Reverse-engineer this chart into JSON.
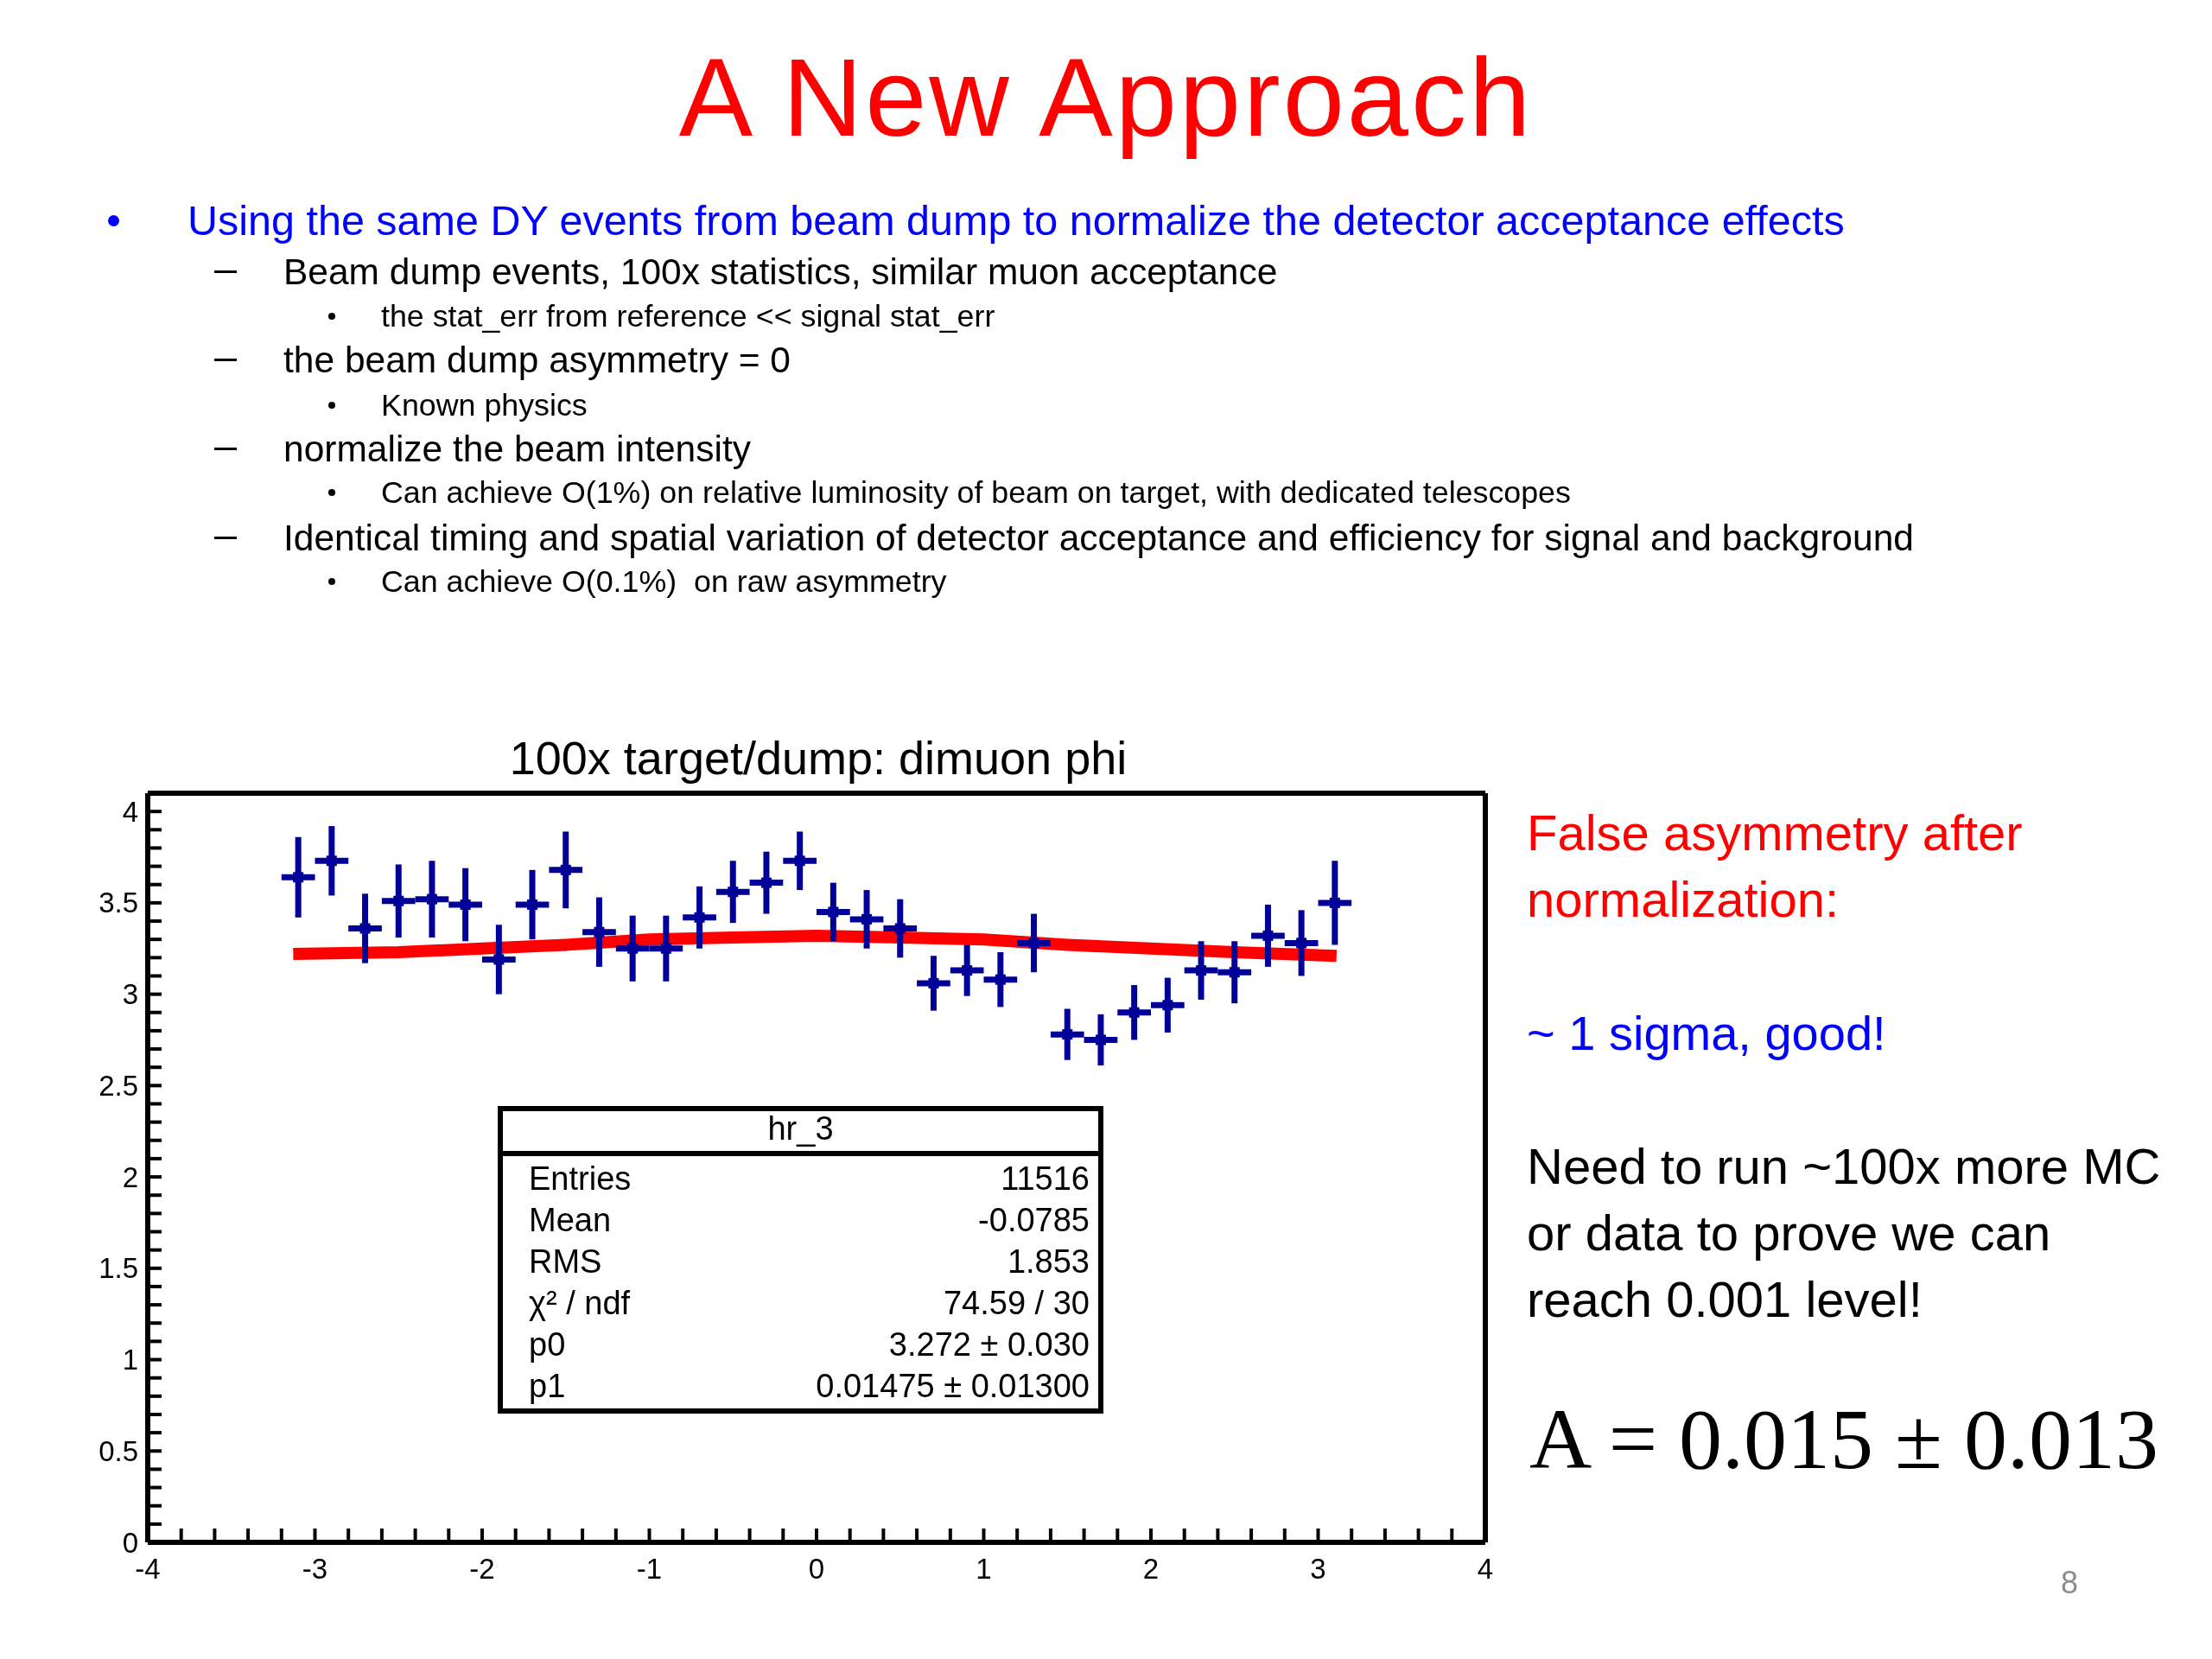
{
  "chart_data": {
    "type": "scatter",
    "title": "A New Approach",
    "subtitle": "100x target/dump: dimuon phi",
    "annotations": [
      "Using the same DY events from beam dump to normalize the detector acceptance effects",
      "Beam dump events, 100x statistics, similar muon acceptance",
      "the stat_err from reference << signal stat_err",
      "the beam dump asymmetry = 0",
      "Known physics",
      "normalize the beam intensity",
      "Can achieve O(1%) on relative luminosity of beam on target, with dedicated telescopes",
      "Identical timing and spatial variation of detector acceptance and efficiency for signal and background",
      "Can achieve O(0.1%)  on raw asymmetry",
      "hr_3",
      "Entries",
      "11516",
      "Mean",
      "-0.0785",
      "RMS",
      "1.853",
      "χ² / ndf",
      "74.59 / 30",
      "p0",
      "3.272 ± 0.030",
      "p1",
      "0.01475 ± 0.01300",
      "False asymmetry after normalization:",
      "~ 1 sigma, good!",
      "Need to run ~100x more MC or data to prove we can reach 0.001 level!",
      "A = 0.015 ± 0.013",
      "8"
    ],
    "xlim": [
      -4,
      4
    ],
    "xticks": [
      -4,
      {
        "value": -3.8,
        "label": null
      },
      {
        "value": -3.6,
        "label": null
      },
      {
        "value": -3.4,
        "label": null
      },
      {
        "value": -3.2,
        "label": null
      },
      -3,
      {
        "value": -2.8,
        "label": null
      },
      {
        "value": -2.6,
        "label": null
      },
      {
        "value": -2.4,
        "label": null
      },
      {
        "value": -2.2,
        "label": null
      },
      -2,
      {
        "value": -1.8,
        "label": null
      },
      {
        "value": -1.6,
        "label": null
      },
      {
        "value": -1.4,
        "label": null
      },
      {
        "value": -1.2,
        "label": null
      },
      -1,
      {
        "value": -0.8,
        "label": null
      },
      {
        "value": -0.6,
        "label": null
      },
      {
        "value": -0.4,
        "label": null
      },
      {
        "value": -0.2,
        "label": null
      },
      0,
      {
        "value": 0.2,
        "label": null
      },
      {
        "value": 0.4,
        "label": null
      },
      {
        "value": 0.6,
        "label": null
      },
      {
        "value": 0.8,
        "label": null
      },
      1,
      {
        "value": 1.2,
        "label": null
      },
      {
        "value": 1.4,
        "label": null
      },
      {
        "value": 1.6,
        "label": null
      },
      {
        "value": 1.8,
        "label": null
      },
      2,
      {
        "value": 2.2,
        "label": null
      },
      {
        "value": 2.4,
        "label": null
      },
      {
        "value": 2.6,
        "label": null
      },
      {
        "value": 2.8,
        "label": null
      },
      3,
      {
        "value": 3.2,
        "label": null
      },
      {
        "value": 3.4,
        "label": null
      },
      {
        "value": 3.6,
        "label": null
      },
      {
        "value": 3.8,
        "label": null
      },
      4
    ],
    "ylim": [
      0,
      4.1
    ],
    "yticks": [
      0,
      {
        "value": 0.1,
        "label": null
      },
      {
        "value": 0.2,
        "label": null
      },
      {
        "value": 0.3,
        "label": null
      },
      {
        "value": 0.4,
        "label": null
      },
      0.5,
      {
        "value": 0.6,
        "label": null
      },
      {
        "value": 0.7,
        "label": null
      },
      {
        "value": 0.8,
        "label": null
      },
      {
        "value": 0.9,
        "label": null
      },
      1,
      {
        "value": 1.1,
        "label": null
      },
      {
        "value": 1.2,
        "label": null
      },
      {
        "value": 1.3,
        "label": null
      },
      {
        "value": 1.4,
        "label": null
      },
      1.5,
      {
        "value": 1.6,
        "label": null
      },
      {
        "value": 1.7,
        "label": null
      },
      {
        "value": 1.8,
        "label": null
      },
      {
        "value": 1.9,
        "label": null
      },
      2,
      {
        "value": 2.1,
        "label": null
      },
      {
        "value": 2.2,
        "label": null
      },
      {
        "value": 2.3,
        "label": null
      },
      {
        "value": 2.4,
        "label": null
      },
      2.5,
      {
        "value": 2.6,
        "label": null
      },
      {
        "value": 2.7,
        "label": null
      },
      {
        "value": 2.8,
        "label": null
      },
      {
        "value": 2.9,
        "label": null
      },
      3,
      {
        "value": 3.1,
        "label": null
      },
      {
        "value": 3.2,
        "label": null
      },
      {
        "value": 3.3,
        "label": null
      },
      {
        "value": 3.4,
        "label": null
      },
      3.5,
      {
        "value": 3.6,
        "label": null
      },
      {
        "value": 3.7,
        "label": null
      },
      {
        "value": 3.8,
        "label": null
      },
      {
        "value": 3.9,
        "label": null
      },
      4
    ],
    "marker": "square",
    "series": [
      {
        "color": "#000099",
        "x": [
          -3.1,
          -2.9,
          -2.7,
          -2.5,
          -2.3,
          -2.1,
          -1.9,
          -1.7,
          -1.5,
          -1.3,
          -1.1,
          -0.9,
          -0.7,
          -0.5,
          -0.3,
          -0.1,
          0.1,
          0.3,
          0.5,
          0.7,
          0.9,
          1.1,
          1.3,
          1.5,
          1.7,
          1.9,
          2.1,
          2.3,
          2.5,
          2.7,
          2.9,
          3.1
        ],
        "values": [
          3.64,
          3.73,
          3.36,
          3.51,
          3.52,
          3.49,
          3.19,
          3.49,
          3.68,
          3.34,
          3.25,
          3.25,
          3.42,
          3.56,
          3.61,
          3.73,
          3.45,
          3.41,
          3.36,
          3.06,
          3.13,
          3.08,
          3.28,
          2.78,
          2.75,
          2.9,
          2.94,
          3.13,
          3.12,
          3.32,
          3.28,
          3.5
        ],
        "errors": [
          0.22,
          0.19,
          0.19,
          0.2,
          0.21,
          0.2,
          0.19,
          0.19,
          0.21,
          0.19,
          0.18,
          0.18,
          0.17,
          0.17,
          0.17,
          0.16,
          0.16,
          0.16,
          0.16,
          0.15,
          0.14,
          0.15,
          0.16,
          0.14,
          0.14,
          0.15,
          0.15,
          0.16,
          0.17,
          0.17,
          0.18,
          0.23
        ],
        "xerrors": [
          0.1,
          0.1,
          0.1,
          0.1,
          0.1,
          0.1,
          0.1,
          0.1,
          0.1,
          0.1,
          0.1,
          0.1,
          0.1,
          0.1,
          0.1,
          0.1,
          0.1,
          0.1,
          0.1,
          0.1,
          0.1,
          0.1,
          0.1,
          0.1,
          0.1,
          0.1,
          0.1,
          0.1,
          0.1,
          0.1,
          0.1,
          0.1
        ]
      },
      {
        "type": "line",
        "color": "#ff0000",
        "marker": "none",
        "x": [
          -3.13,
          -2.5,
          -2,
          -1.5,
          -1,
          -0.5,
          0,
          0.5,
          1,
          1.5,
          2,
          2.5,
          3.11
        ],
        "values": [
          3.22,
          3.23,
          3.25,
          3.27,
          3.3,
          3.31,
          3.32,
          3.31,
          3.3,
          3.27,
          3.25,
          3.23,
          3.21
        ]
      }
    ]
  }
}
